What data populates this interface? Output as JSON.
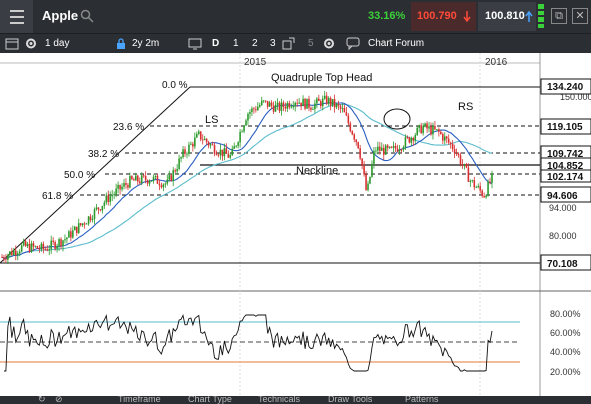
{
  "header": {
    "symbol": "Apple",
    "change_pct": "33.16%",
    "bid": "100.790",
    "ask": "100.810",
    "colors": {
      "up": "#3bd13b",
      "down": "#ff4a3a"
    }
  },
  "toolbar": {
    "interval": "1 day",
    "range": "2y 2m",
    "draw_items": [
      "D",
      "1",
      "2",
      "3"
    ],
    "small_num": "5",
    "chart_forum": "Chart Forum"
  },
  "chart": {
    "year_labels": [
      "2015",
      "2016"
    ],
    "price_axis": [
      "150.000",
      "94.000",
      "80.000"
    ],
    "price_tags": [
      "134.240",
      "119.105",
      "109.742",
      "104.852",
      "102.174",
      "94.606",
      "70.108"
    ],
    "fib_labels": [
      "0.0 %",
      "23.6 %",
      "38.2 %",
      "50.0 %",
      "61.8 %"
    ],
    "annotations": [
      "Quadruple Top Head",
      "LS",
      "RS",
      "Neckline"
    ],
    "rsi_axis": [
      "80.00%",
      "60.00%",
      "40.00%",
      "20.00%"
    ]
  },
  "bottom": {
    "tabs": [
      "Timeframe",
      "Chart Type",
      "Technicals",
      "Draw Tools",
      "Patterns"
    ]
  },
  "chart_data": {
    "type": "line",
    "x_range": [
      "2014",
      "2016"
    ],
    "ylim": [
      68,
      140
    ],
    "price_key_points": [
      {
        "t": 0.0,
        "v": 72
      },
      {
        "t": 0.04,
        "v": 76
      },
      {
        "t": 0.08,
        "v": 75
      },
      {
        "t": 0.12,
        "v": 79
      },
      {
        "t": 0.16,
        "v": 86
      },
      {
        "t": 0.2,
        "v": 94
      },
      {
        "t": 0.24,
        "v": 100
      },
      {
        "t": 0.28,
        "v": 101
      },
      {
        "t": 0.31,
        "v": 99
      },
      {
        "t": 0.34,
        "v": 110
      },
      {
        "t": 0.37,
        "v": 117
      },
      {
        "t": 0.4,
        "v": 112
      },
      {
        "t": 0.43,
        "v": 109
      },
      {
        "t": 0.46,
        "v": 125
      },
      {
        "t": 0.49,
        "v": 129
      },
      {
        "t": 0.52,
        "v": 127
      },
      {
        "t": 0.55,
        "v": 130
      },
      {
        "t": 0.58,
        "v": 128
      },
      {
        "t": 0.61,
        "v": 130
      },
      {
        "t": 0.64,
        "v": 126
      },
      {
        "t": 0.67,
        "v": 113
      },
      {
        "t": 0.685,
        "v": 95
      },
      {
        "t": 0.7,
        "v": 112
      },
      {
        "t": 0.73,
        "v": 111
      },
      {
        "t": 0.76,
        "v": 115
      },
      {
        "t": 0.79,
        "v": 120
      },
      {
        "t": 0.82,
        "v": 118
      },
      {
        "t": 0.85,
        "v": 112
      },
      {
        "t": 0.88,
        "v": 100
      },
      {
        "t": 0.905,
        "v": 95
      },
      {
        "t": 0.92,
        "v": 101
      }
    ],
    "rsi_levels": [
      70,
      50,
      30
    ]
  }
}
